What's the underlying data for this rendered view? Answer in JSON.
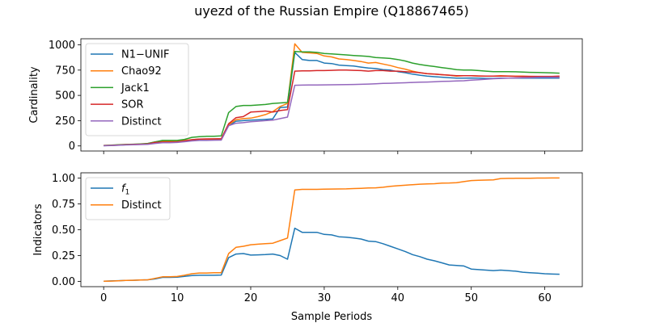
{
  "title": "uyezd of the Russian Empire (Q18867465)",
  "chart_data": [
    {
      "type": "line",
      "ylabel": "Cardinality",
      "xlabel": "",
      "xlim": [
        -3.1,
        65.1
      ],
      "ylim": [
        -50,
        1060
      ],
      "xticks": [
        0,
        10,
        20,
        30,
        40,
        50,
        60
      ],
      "yticks": [
        0,
        250,
        500,
        750,
        1000
      ],
      "ytick_labels": [
        "0",
        "250",
        "500",
        "750",
        "1000"
      ],
      "legend": "top-left",
      "x": [
        0,
        1,
        2,
        3,
        4,
        5,
        6,
        7,
        8,
        9,
        10,
        11,
        12,
        13,
        14,
        15,
        16,
        17,
        18,
        19,
        20,
        21,
        22,
        23,
        24,
        25,
        26,
        27,
        28,
        29,
        30,
        31,
        32,
        33,
        34,
        35,
        36,
        37,
        38,
        39,
        40,
        41,
        42,
        43,
        44,
        45,
        46,
        47,
        48,
        49,
        50,
        51,
        52,
        53,
        54,
        55,
        56,
        57,
        58,
        59,
        60,
        61,
        62
      ],
      "series": [
        {
          "name": "N1−UNIF",
          "color": "#1f77b4",
          "values": [
            3,
            5,
            8,
            12,
            14,
            16,
            20,
            30,
            40,
            40,
            42,
            50,
            60,
            65,
            65,
            67,
            68,
            200,
            245,
            250,
            255,
            258,
            262,
            268,
            380,
            385,
            925,
            855,
            845,
            845,
            820,
            815,
            800,
            795,
            790,
            780,
            770,
            765,
            755,
            750,
            735,
            725,
            710,
            700,
            690,
            685,
            680,
            675,
            670,
            670,
            672,
            670,
            668,
            668,
            670,
            670,
            670,
            670,
            670,
            670,
            670,
            672,
            670
          ]
        },
        {
          "name": "Chao92",
          "color": "#ff7f0e",
          "values": [
            4,
            6,
            10,
            14,
            16,
            18,
            22,
            40,
            45,
            45,
            48,
            55,
            62,
            68,
            68,
            70,
            70,
            210,
            260,
            270,
            275,
            290,
            310,
            340,
            390,
            420,
            1010,
            925,
            920,
            915,
            890,
            880,
            860,
            855,
            845,
            835,
            820,
            825,
            810,
            795,
            775,
            760,
            740,
            725,
            715,
            710,
            705,
            700,
            690,
            695,
            695,
            692,
            690,
            690,
            695,
            692,
            690,
            690,
            688,
            686,
            685,
            683,
            680
          ]
        },
        {
          "name": "Jack1",
          "color": "#2ca02c",
          "values": [
            5,
            8,
            12,
            15,
            17,
            20,
            25,
            40,
            55,
            55,
            55,
            65,
            85,
            92,
            95,
            95,
            100,
            330,
            390,
            400,
            400,
            405,
            410,
            420,
            425,
            430,
            935,
            930,
            930,
            925,
            915,
            910,
            905,
            900,
            895,
            890,
            885,
            875,
            870,
            865,
            855,
            840,
            820,
            805,
            795,
            785,
            775,
            765,
            755,
            750,
            750,
            745,
            740,
            735,
            735,
            735,
            733,
            730,
            728,
            726,
            725,
            723,
            720
          ]
        },
        {
          "name": "SOR",
          "color": "#d62728",
          "values": [
            4,
            6,
            9,
            13,
            15,
            17,
            20,
            35,
            38,
            38,
            40,
            50,
            62,
            68,
            70,
            70,
            72,
            220,
            280,
            290,
            335,
            340,
            345,
            335,
            350,
            360,
            740,
            742,
            742,
            745,
            745,
            748,
            750,
            750,
            748,
            745,
            740,
            745,
            745,
            740,
            740,
            735,
            730,
            725,
            715,
            710,
            705,
            700,
            695,
            695,
            695,
            692,
            690,
            690,
            690,
            690,
            688,
            688,
            688,
            688,
            688,
            688,
            690
          ]
        },
        {
          "name": "Distinct",
          "color": "#9467bd",
          "values": [
            2,
            4,
            7,
            10,
            12,
            14,
            16,
            25,
            32,
            32,
            35,
            42,
            50,
            55,
            55,
            57,
            58,
            200,
            225,
            230,
            240,
            245,
            250,
            255,
            270,
            285,
            600,
            602,
            603,
            603,
            604,
            605,
            606,
            607,
            608,
            610,
            612,
            615,
            618,
            620,
            622,
            625,
            628,
            630,
            632,
            635,
            638,
            640,
            642,
            645,
            650,
            655,
            660,
            665,
            668,
            670,
            672,
            674,
            676,
            678,
            680,
            680,
            680
          ]
        }
      ]
    },
    {
      "type": "line",
      "ylabel": "Indicators",
      "xlabel": "Sample Periods",
      "xlim": [
        -3.1,
        65.1
      ],
      "ylim": [
        -0.05,
        1.05
      ],
      "xticks": [
        0,
        10,
        20,
        30,
        40,
        50,
        60
      ],
      "yticks": [
        0.0,
        0.25,
        0.5,
        0.75,
        1.0
      ],
      "ytick_labels": [
        "0.00",
        "0.25",
        "0.50",
        "0.75",
        "1.00"
      ],
      "legend": "top-left",
      "x": [
        0,
        1,
        2,
        3,
        4,
        5,
        6,
        7,
        8,
        9,
        10,
        11,
        12,
        13,
        14,
        15,
        16,
        17,
        18,
        19,
        20,
        21,
        22,
        23,
        24,
        25,
        26,
        27,
        28,
        29,
        30,
        31,
        32,
        33,
        34,
        35,
        36,
        37,
        38,
        39,
        40,
        41,
        42,
        43,
        44,
        45,
        46,
        47,
        48,
        49,
        50,
        51,
        52,
        53,
        54,
        55,
        56,
        57,
        58,
        59,
        60,
        61,
        62
      ],
      "series": [
        {
          "name": "f1",
          "color": "#1f77b4",
          "values": [
            0.003,
            0.005,
            0.008,
            0.01,
            0.012,
            0.014,
            0.016,
            0.025,
            0.04,
            0.04,
            0.042,
            0.05,
            0.058,
            0.06,
            0.06,
            0.06,
            0.062,
            0.23,
            0.265,
            0.27,
            0.255,
            0.257,
            0.26,
            0.265,
            0.25,
            0.215,
            0.515,
            0.475,
            0.475,
            0.475,
            0.455,
            0.45,
            0.432,
            0.428,
            0.42,
            0.41,
            0.39,
            0.385,
            0.365,
            0.34,
            0.315,
            0.29,
            0.26,
            0.24,
            0.215,
            0.2,
            0.18,
            0.16,
            0.155,
            0.15,
            0.12,
            0.115,
            0.11,
            0.105,
            0.11,
            0.105,
            0.1,
            0.09,
            0.085,
            0.08,
            0.075,
            0.072,
            0.07
          ]
        },
        {
          "name": "Distinct",
          "color": "#ff7f0e",
          "values": [
            0.002,
            0.004,
            0.007,
            0.01,
            0.012,
            0.014,
            0.016,
            0.03,
            0.045,
            0.045,
            0.048,
            0.06,
            0.075,
            0.082,
            0.082,
            0.085,
            0.085,
            0.27,
            0.33,
            0.34,
            0.355,
            0.36,
            0.365,
            0.37,
            0.395,
            0.42,
            0.885,
            0.89,
            0.89,
            0.89,
            0.892,
            0.893,
            0.894,
            0.895,
            0.898,
            0.9,
            0.903,
            0.905,
            0.91,
            0.92,
            0.925,
            0.93,
            0.935,
            0.94,
            0.942,
            0.945,
            0.95,
            0.952,
            0.955,
            0.965,
            0.975,
            0.978,
            0.98,
            0.982,
            0.995,
            0.996,
            0.997,
            0.998,
            0.998,
            0.999,
            0.999,
            1.0,
            1.0
          ]
        }
      ]
    }
  ]
}
